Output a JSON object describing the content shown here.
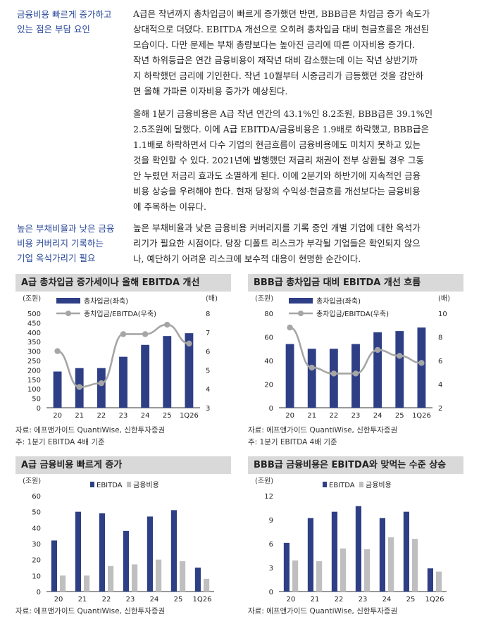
{
  "sections": [
    {
      "side_lines": [
        "금융비용 빠르게 증가하고",
        "있는 점은 부담 요인"
      ],
      "para_lines": [
        "A급은 작년까지 총차입금이 빠르게 증가했던 반면, BBB급은 차입금 증가 속도가",
        "상대적으로 더뎠다. EBITDA 개선으로 오히려 총차입금 대비 현금흐름은 개선된",
        "모습이다. 다만 문제는 부채 총량보다는 높아진 금리에 따른 이자비용 증가다.",
        "작년 하위등급은 연간 금융비용이 재작년 대비 감소했는데 이는 작년 상반기까",
        "지 하락했던 금리에 기인한다. 작년 10월부터 시중금리가 급등했던 것을 감안하",
        "면 올해 가파른 이자비용 증가가 예상된다."
      ]
    },
    {
      "side_lines": [],
      "para_lines": [
        "올해 1분기 금융비용은 A급 작년 연간의 43.1%인 8.2조원, BBB급은 39.1%인",
        "2.5조원에 달했다. 이에 A급 EBITDA/금융비용은 1.9배로 하락했고, BBB급은",
        "1.1배로 하락하면서 다수 기업의 현금흐름이 금융비용에도 미치지 못하고 있는",
        "것을 확인할 수 있다. 2021년에 발행했던 저금리 채권이 전부 상환될 경우 그동",
        "안 누렸던 저금리 효과도 소멸하게 된다. 이에 2분기와 하반기에 지속적인 금융",
        "비용 상승을 우려해야 한다. 현재 당장의 수익성·현금흐름 개선보다는 금융비용",
        "에 주목하는 이유다."
      ]
    },
    {
      "side_lines": [
        "높은 부채비율과 낮은 금융",
        "비용 커버리지 기록하는",
        "기업 옥석가리기 필요"
      ],
      "para_lines": [
        "높은 부채비율과 낮은 금융비용 커버리지를 기록 중인 개별 기업에 대한 옥석가",
        "리기가 필요한 시점이다. 당장 디폴트 리스크가 부각될 기업들은 확인되지 않으",
        "나, 예단하기 어려운 리스크에 보수적 대응이 현명한 순간이다."
      ]
    }
  ],
  "colors": {
    "bar": "#2e3f85",
    "bar2": "#bfbfbf",
    "line": "#a6a6a6",
    "side": "#2b4a9a",
    "title_bg": "#d9d9d9"
  },
  "charts": [
    {
      "title": "A급 총차입금 증가세이나 올해 EBITDA 개선",
      "source_lines": [
        "자료: 에프앤가이드 QuantiWise, 신한투자증권",
        "주: 1분기 EBITDA 4배 기준"
      ],
      "chart_data": {
        "type": "bar+line",
        "left_unit": "(조원)",
        "right_unit": "(배)",
        "categories": [
          "20",
          "21",
          "22",
          "23",
          "24",
          "25",
          "1Q26"
        ],
        "left_ticks": [
          "0",
          "50",
          "100",
          "150",
          "200",
          "250",
          "300",
          "350",
          "400",
          "450",
          "500"
        ],
        "right_ticks": [
          "3",
          "4",
          "5",
          "6",
          "7",
          "8"
        ],
        "ylim_left": [
          0,
          500
        ],
        "ylim_right": [
          3,
          8
        ],
        "series": [
          {
            "name": "총차입금(좌축)",
            "kind": "bar",
            "axis": "left",
            "values": [
              192,
              210,
              210,
              270,
              333,
              380,
              395
            ]
          },
          {
            "name": "총차입금/EBITDA(우축)",
            "kind": "line",
            "axis": "right",
            "values": [
              6.0,
              4.1,
              4.3,
              6.9,
              6.9,
              7.4,
              6.4
            ]
          }
        ],
        "legend": "top-left"
      }
    },
    {
      "title": "BBB급 총차입금 대비 EBITDA 개선 흐름",
      "source_lines": [
        "자료: 에프앤가이드 QuantiWise, 신한투자증권",
        "주: 1분기 EBITDA 4배 기준"
      ],
      "chart_data": {
        "type": "bar+line",
        "left_unit": "(조원)",
        "right_unit": "(배)",
        "categories": [
          "20",
          "21",
          "22",
          "23",
          "24",
          "25",
          "1Q26"
        ],
        "left_ticks": [
          "0",
          "20",
          "40",
          "60",
          "80"
        ],
        "right_ticks": [
          "2",
          "4",
          "6",
          "8",
          "10"
        ],
        "ylim_left": [
          0,
          80
        ],
        "ylim_right": [
          2,
          10
        ],
        "series": [
          {
            "name": "총차입금(좌축)",
            "kind": "bar",
            "axis": "left",
            "values": [
              54,
              50,
              50,
              54,
              64,
              65,
              68
            ]
          },
          {
            "name": "총차입금/EBITDA(우축)",
            "kind": "line",
            "axis": "right",
            "values": [
              8.8,
              5.4,
              4.9,
              4.9,
              6.9,
              6.4,
              5.8
            ]
          }
        ],
        "legend": "top-left"
      }
    },
    {
      "title": "A급 금융비용 빠르게 증가",
      "source_lines": [
        "자료: 에프앤가이드 QuantiWise, 신한투자증권"
      ],
      "chart_data": {
        "type": "bar",
        "left_unit": "(조원)",
        "categories": [
          "20",
          "21",
          "22",
          "23",
          "24",
          "25",
          "1Q26"
        ],
        "left_ticks": [
          "0",
          "10",
          "20",
          "30",
          "40",
          "50",
          "60"
        ],
        "ylim_left": [
          0,
          60
        ],
        "series": [
          {
            "name": "EBITDA",
            "kind": "bar",
            "values": [
              32,
              50,
              49,
              38,
              47,
              51,
              15
            ]
          },
          {
            "name": "금융비용",
            "kind": "bar2",
            "values": [
              10,
              10,
              16,
              17,
              20,
              19,
              8
            ]
          }
        ],
        "legend": "top-center"
      }
    },
    {
      "title": "BBB급 금융비용은 EBITDA와 맞먹는 수준 상승",
      "source_lines": [
        "자료: 에프앤가이드 QuantiWise, 신한투자증권"
      ],
      "chart_data": {
        "type": "bar",
        "left_unit": "(조원)",
        "categories": [
          "20",
          "21",
          "22",
          "23",
          "24",
          "25",
          "1Q26"
        ],
        "left_ticks": [
          "0",
          "3",
          "6",
          "9",
          "12"
        ],
        "ylim_left": [
          0,
          12
        ],
        "series": [
          {
            "name": "EBITDA",
            "kind": "bar",
            "values": [
              6.1,
              9.2,
              10.0,
              10.7,
              9.2,
              10.0,
              2.9
            ]
          },
          {
            "name": "금융비용",
            "kind": "bar2",
            "values": [
              3.9,
              3.8,
              5.4,
              5.3,
              6.8,
              6.6,
              2.5
            ]
          }
        ],
        "legend": "top-center"
      }
    }
  ]
}
